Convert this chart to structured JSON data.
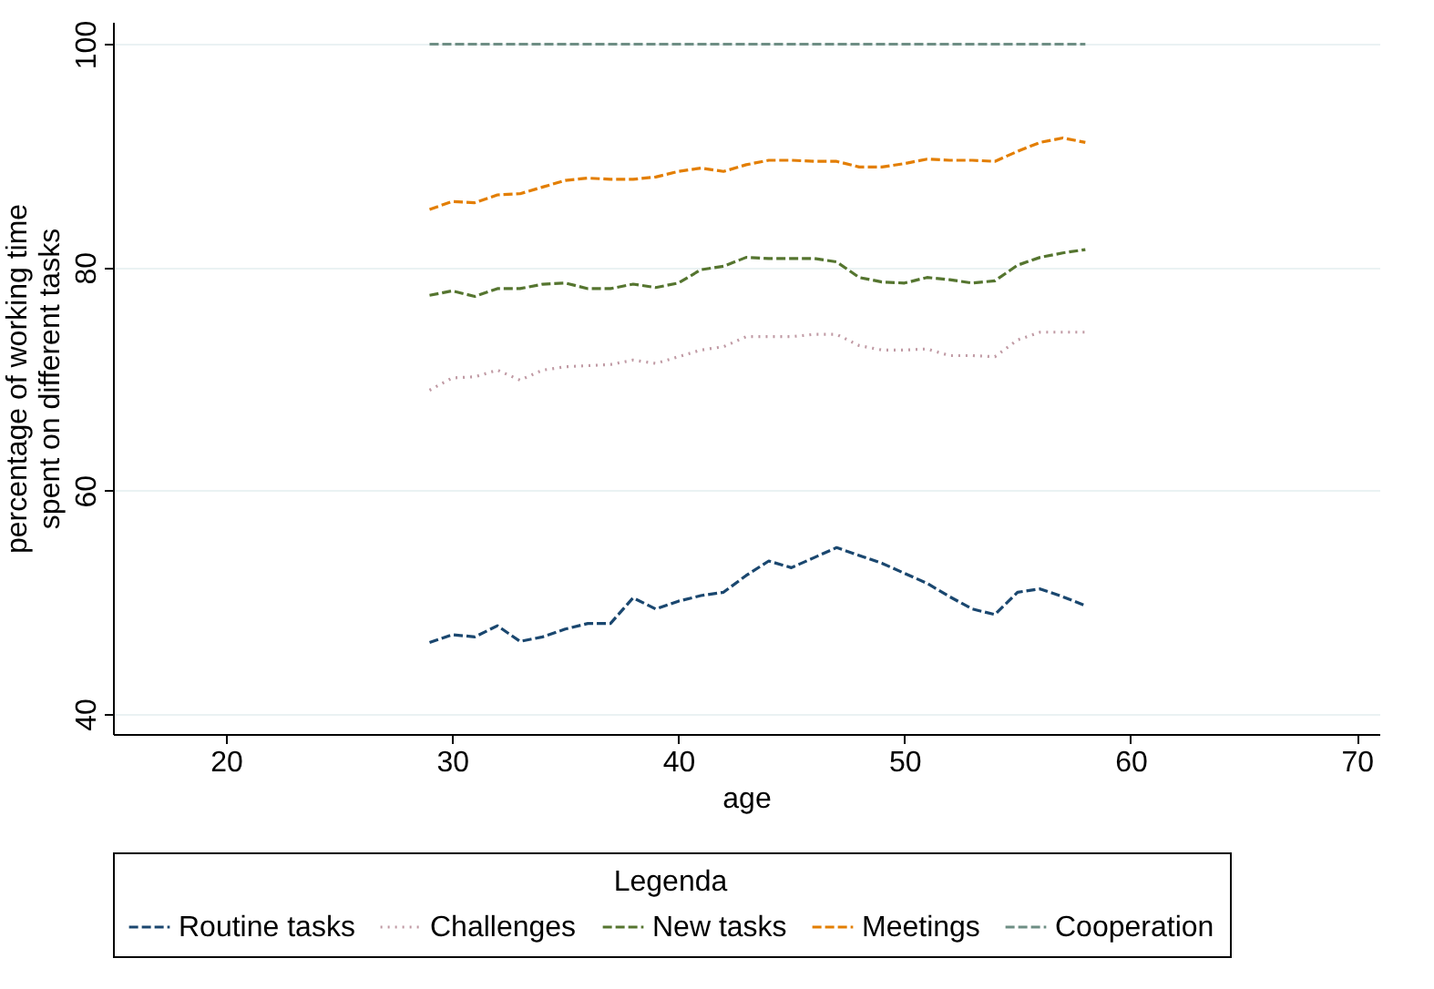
{
  "chart_data": {
    "type": "line",
    "xlabel": "age",
    "ylabel": "percentage of working time\nspent on different tasks",
    "legend_title": "Legenda",
    "legend": "bottom",
    "grid": "y",
    "x": [
      29,
      30,
      31,
      32,
      33,
      34,
      35,
      36,
      37,
      38,
      39,
      40,
      41,
      42,
      43,
      44,
      45,
      46,
      47,
      48,
      49,
      50,
      51,
      52,
      53,
      54,
      55,
      56,
      57,
      58
    ],
    "xlim": [
      15,
      71
    ],
    "xticks": [
      20,
      30,
      40,
      50,
      60,
      70
    ],
    "ylim": [
      38.2,
      102
    ],
    "yticks": [
      40,
      60,
      80,
      100
    ],
    "series": [
      {
        "name": "Routine tasks",
        "color": "#1a476f",
        "line_style": "dashed",
        "values": [
          46.4,
          47.1,
          46.9,
          47.9,
          46.5,
          46.9,
          47.6,
          48.1,
          48.1,
          50.4,
          49.4,
          50.1,
          50.6,
          50.9,
          52.4,
          53.7,
          53.1,
          54.0,
          54.9,
          54.2,
          53.5,
          52.6,
          51.7,
          50.5,
          49.4,
          48.9,
          50.9,
          51.2,
          50.5,
          49.7
        ]
      },
      {
        "name": "Challenges",
        "color": "#c09aa4",
        "line_style": "dotted",
        "values": [
          69.0,
          70.1,
          70.2,
          70.8,
          69.9,
          70.8,
          71.1,
          71.2,
          71.3,
          71.7,
          71.4,
          72.0,
          72.6,
          72.9,
          73.8,
          73.8,
          73.8,
          74.0,
          74.0,
          73.0,
          72.6,
          72.6,
          72.7,
          72.1,
          72.1,
          72.0,
          73.5,
          74.2,
          74.2,
          74.2
        ]
      },
      {
        "name": "New tasks",
        "color": "#55752f",
        "line_style": "dashed",
        "values": [
          77.5,
          77.9,
          77.4,
          78.1,
          78.1,
          78.5,
          78.6,
          78.1,
          78.1,
          78.5,
          78.2,
          78.6,
          79.8,
          80.1,
          80.9,
          80.8,
          80.8,
          80.8,
          80.5,
          79.1,
          78.7,
          78.6,
          79.1,
          78.9,
          78.6,
          78.8,
          80.2,
          80.9,
          81.3,
          81.6
        ]
      },
      {
        "name": "Meetings",
        "color": "#e37e00",
        "line_style": "dashed",
        "values": [
          85.2,
          85.9,
          85.8,
          86.5,
          86.6,
          87.2,
          87.8,
          88.0,
          87.9,
          87.9,
          88.1,
          88.6,
          88.9,
          88.6,
          89.2,
          89.6,
          89.6,
          89.5,
          89.5,
          89.0,
          89.0,
          89.3,
          89.7,
          89.6,
          89.6,
          89.5,
          90.4,
          91.2,
          91.6,
          91.2
        ]
      },
      {
        "name": "Cooperation",
        "color": "#6e8e84",
        "line_style": "dashed",
        "values": [
          100,
          100,
          100,
          100,
          100,
          100,
          100,
          100,
          100,
          100,
          100,
          100,
          100,
          100,
          100,
          100,
          100,
          100,
          100,
          100,
          100,
          100,
          100,
          100,
          100,
          100,
          100,
          100,
          100,
          100
        ]
      }
    ]
  }
}
